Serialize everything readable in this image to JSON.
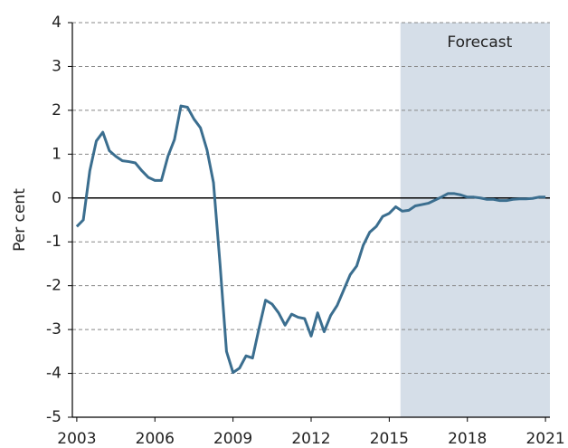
{
  "chart_data": {
    "type": "line",
    "y_label": "Per cent",
    "annotation": "Forecast",
    "forecast_start": 2015.43,
    "shade_color": "#d5dee8",
    "x": [
      2003.0,
      2003.25,
      2003.5,
      2003.75,
      2004.0,
      2004.25,
      2004.5,
      2004.75,
      2005.0,
      2005.25,
      2005.5,
      2005.75,
      2006.0,
      2006.25,
      2006.5,
      2006.75,
      2007.0,
      2007.25,
      2007.5,
      2007.75,
      2008.0,
      2008.25,
      2008.5,
      2008.75,
      2009.0,
      2009.25,
      2009.5,
      2009.75,
      2010.0,
      2010.25,
      2010.5,
      2010.75,
      2011.0,
      2011.25,
      2011.5,
      2011.75,
      2012.0,
      2012.25,
      2012.5,
      2012.75,
      2013.0,
      2013.25,
      2013.5,
      2013.75,
      2014.0,
      2014.25,
      2014.5,
      2014.75,
      2015.0,
      2015.25,
      2015.5,
      2015.75,
      2016.0,
      2016.25,
      2016.5,
      2016.75,
      2017.0,
      2017.25,
      2017.5,
      2017.75,
      2018.0,
      2018.25,
      2018.5,
      2018.75,
      2019.0,
      2019.25,
      2019.5,
      2019.75,
      2020.0,
      2020.25,
      2020.5,
      2020.75,
      2021.0
    ],
    "series": [
      {
        "color": "#3b6e8f",
        "values": [
          -0.65,
          -0.5,
          0.62,
          1.3,
          1.5,
          1.08,
          0.95,
          0.85,
          0.83,
          0.8,
          0.62,
          0.47,
          0.4,
          0.4,
          0.95,
          1.33,
          2.1,
          2.07,
          1.8,
          1.6,
          1.1,
          0.35,
          -1.5,
          -3.5,
          -3.98,
          -3.88,
          -3.6,
          -3.65,
          -2.97,
          -2.33,
          -2.42,
          -2.62,
          -2.9,
          -2.65,
          -2.72,
          -2.75,
          -3.15,
          -2.62,
          -3.05,
          -2.68,
          -2.45,
          -2.1,
          -1.75,
          -1.55,
          -1.08,
          -0.78,
          -0.65,
          -0.42,
          -0.35,
          -0.2,
          -0.3,
          -0.28,
          -0.18,
          -0.15,
          -0.12,
          -0.05,
          0.02,
          0.1,
          0.1,
          0.07,
          0.02,
          0.02,
          0,
          -0.03,
          -0.03,
          -0.06,
          -0.06,
          -0.03,
          -0.02,
          -0.02,
          -0.01,
          0.02,
          0.02
        ]
      }
    ],
    "xlim": [
      2002.83,
      2021.17
    ],
    "xticks": [
      2003,
      2006,
      2009,
      2012,
      2015,
      2018,
      2021
    ],
    "ylim": [
      -5,
      4
    ],
    "yticks": [
      -5,
      -4,
      -3,
      -2,
      -1,
      0,
      1,
      2,
      3,
      4
    ],
    "grid": true
  }
}
